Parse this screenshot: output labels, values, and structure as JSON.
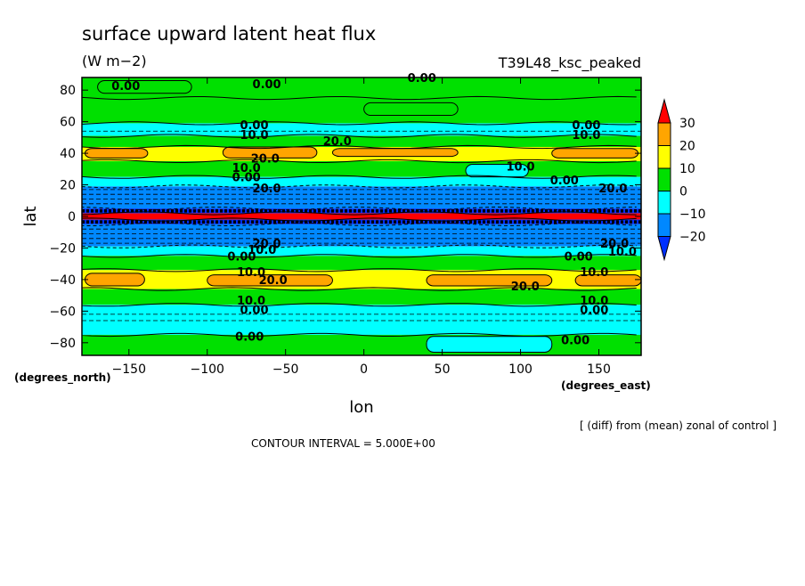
{
  "chart_data": {
    "type": "heatmap",
    "title": "surface upward latent heat flux",
    "units": "(W m−2)",
    "experiment": "T39L48_ksc_peaked",
    "xlabel": "lon",
    "ylabel": "lat",
    "xunits": "(degrees_east)",
    "yunits": "(degrees_north)",
    "xlim": [
      -180,
      177
    ],
    "ylim": [
      -88,
      88
    ],
    "xticks": [
      "−150",
      "−100",
      "−50",
      "0",
      "50",
      "100",
      "150"
    ],
    "xtick_values": [
      -150,
      -100,
      -50,
      0,
      50,
      100,
      150
    ],
    "yticks": [
      "−80",
      "−60",
      "−40",
      "−20",
      "0",
      "20",
      "40",
      "60",
      "80"
    ],
    "ytick_values": [
      -80,
      -60,
      -40,
      -20,
      0,
      20,
      40,
      60,
      80
    ],
    "note": "[ (diff) from (mean) zonal of control ]",
    "contour_interval": "CONTOUR INTERVAL = 5.000E+00",
    "colorbar": {
      "labels": [
        "30",
        "20",
        "10",
        "0",
        "−10",
        "−20"
      ],
      "level_values": [
        30,
        20,
        10,
        0,
        -10,
        -20
      ],
      "colors": [
        "#ff0000",
        "#ffa500",
        "#ffff00",
        "#00e000",
        "#00ffff",
        "#0088ff",
        "#0030ff"
      ]
    },
    "bands": [
      {
        "lat_min": 75,
        "lat_max": 88,
        "value": 0
      },
      {
        "lat_min": 59,
        "lat_max": 75,
        "value": 5
      },
      {
        "lat_min": 51,
        "lat_max": 59,
        "value": -5
      },
      {
        "lat_min": 44,
        "lat_max": 51,
        "value": 5
      },
      {
        "lat_min": 35,
        "lat_max": 44,
        "value": 15
      },
      {
        "lat_min": 25,
        "lat_max": 35,
        "value": 5
      },
      {
        "lat_min": 19,
        "lat_max": 25,
        "value": -5
      },
      {
        "lat_min": 5,
        "lat_max": 19,
        "value": -15
      },
      {
        "lat_min": 2,
        "lat_max": 5,
        "value": -25
      },
      {
        "lat_min": -2,
        "lat_max": 2,
        "value": 35
      },
      {
        "lat_min": -5,
        "lat_max": -2,
        "value": -25
      },
      {
        "lat_min": -19,
        "lat_max": -5,
        "value": -15
      },
      {
        "lat_min": -25,
        "lat_max": -19,
        "value": -5
      },
      {
        "lat_min": -34,
        "lat_max": -25,
        "value": 5
      },
      {
        "lat_min": -46,
        "lat_max": -34,
        "value": 15
      },
      {
        "lat_min": -56,
        "lat_max": -46,
        "value": 5
      },
      {
        "lat_min": -75,
        "lat_max": -56,
        "value": -5
      },
      {
        "lat_min": -88,
        "lat_max": -75,
        "value": 0
      }
    ],
    "patches": [
      {
        "lon_min": -178,
        "lon_max": -138,
        "lat_min": 37,
        "lat_max": 43,
        "value": 25
      },
      {
        "lon_min": -90,
        "lon_max": -30,
        "lat_min": 37,
        "lat_max": 44,
        "value": 25
      },
      {
        "lon_min": -20,
        "lon_max": 60,
        "lat_min": 38,
        "lat_max": 43,
        "value": 25
      },
      {
        "lon_min": 120,
        "lon_max": 175,
        "lat_min": 37,
        "lat_max": 43,
        "value": 25
      },
      {
        "lon_min": 65,
        "lon_max": 105,
        "lat_min": 25,
        "lat_max": 33,
        "value": -5
      },
      {
        "lon_min": -178,
        "lon_max": -140,
        "lat_min": -44,
        "lat_max": -36,
        "value": 25
      },
      {
        "lon_min": -100,
        "lon_max": -20,
        "lat_min": -44,
        "lat_max": -37,
        "value": 25
      },
      {
        "lon_min": 40,
        "lon_max": 120,
        "lat_min": -44,
        "lat_max": -37,
        "value": 25
      },
      {
        "lon_min": 135,
        "lon_max": 177,
        "lat_min": -44,
        "lat_max": -37,
        "value": 25
      },
      {
        "lon_min": -170,
        "lon_max": -110,
        "lat_min": 78,
        "lat_max": 86,
        "value": 5
      },
      {
        "lon_min": 40,
        "lon_max": 120,
        "lat_min": -86,
        "lat_max": -76,
        "value": -5
      },
      {
        "lon_min": 0,
        "lon_max": 60,
        "lat_min": 64,
        "lat_max": 72,
        "value": 5
      }
    ],
    "contour_labels": [
      {
        "text": "0.00",
        "lon": -152,
        "lat": 83
      },
      {
        "text": "0.00",
        "lon": -62,
        "lat": 84
      },
      {
        "text": "0.00",
        "lon": 37,
        "lat": 88
      },
      {
        "text": "0.00",
        "lon": -70,
        "lat": 58
      },
      {
        "text": "10.0",
        "lon": -70,
        "lat": 52
      },
      {
        "text": "20.0",
        "lon": -17,
        "lat": 48
      },
      {
        "text": "0.00",
        "lon": 142,
        "lat": 58
      },
      {
        "text": "10.0",
        "lon": 142,
        "lat": 52
      },
      {
        "text": "20.0",
        "lon": -63,
        "lat": 37
      },
      {
        "text": "10.0",
        "lon": -75,
        "lat": 31
      },
      {
        "text": "10.0",
        "lon": 100,
        "lat": 32
      },
      {
        "text": "0.00",
        "lon": -75,
        "lat": 25
      },
      {
        "text": "0.00",
        "lon": 128,
        "lat": 23
      },
      {
        "text": "20.0",
        "lon": -62,
        "lat": 18
      },
      {
        "text": "20.0",
        "lon": 159,
        "lat": 18
      },
      {
        "text": "20.0",
        "lon": -62,
        "lat": -17
      },
      {
        "text": "20.0",
        "lon": 160,
        "lat": -17
      },
      {
        "text": "10.0",
        "lon": -65,
        "lat": -21
      },
      {
        "text": "10.0",
        "lon": 165,
        "lat": -22
      },
      {
        "text": "0.00",
        "lon": -78,
        "lat": -25
      },
      {
        "text": "0.00",
        "lon": 137,
        "lat": -25
      },
      {
        "text": "10.0",
        "lon": -72,
        "lat": -35
      },
      {
        "text": "20.0",
        "lon": -58,
        "lat": -40
      },
      {
        "text": "20.0",
        "lon": 103,
        "lat": -44
      },
      {
        "text": "10.0",
        "lon": 147,
        "lat": -35
      },
      {
        "text": "10.0",
        "lon": -72,
        "lat": -53
      },
      {
        "text": "0.00",
        "lon": -70,
        "lat": -59
      },
      {
        "text": "10.0",
        "lon": 147,
        "lat": -53
      },
      {
        "text": "0.00",
        "lon": 147,
        "lat": -59
      },
      {
        "text": "0.00",
        "lon": -73,
        "lat": -76
      },
      {
        "text": "0.00",
        "lon": 135,
        "lat": -78
      }
    ]
  }
}
